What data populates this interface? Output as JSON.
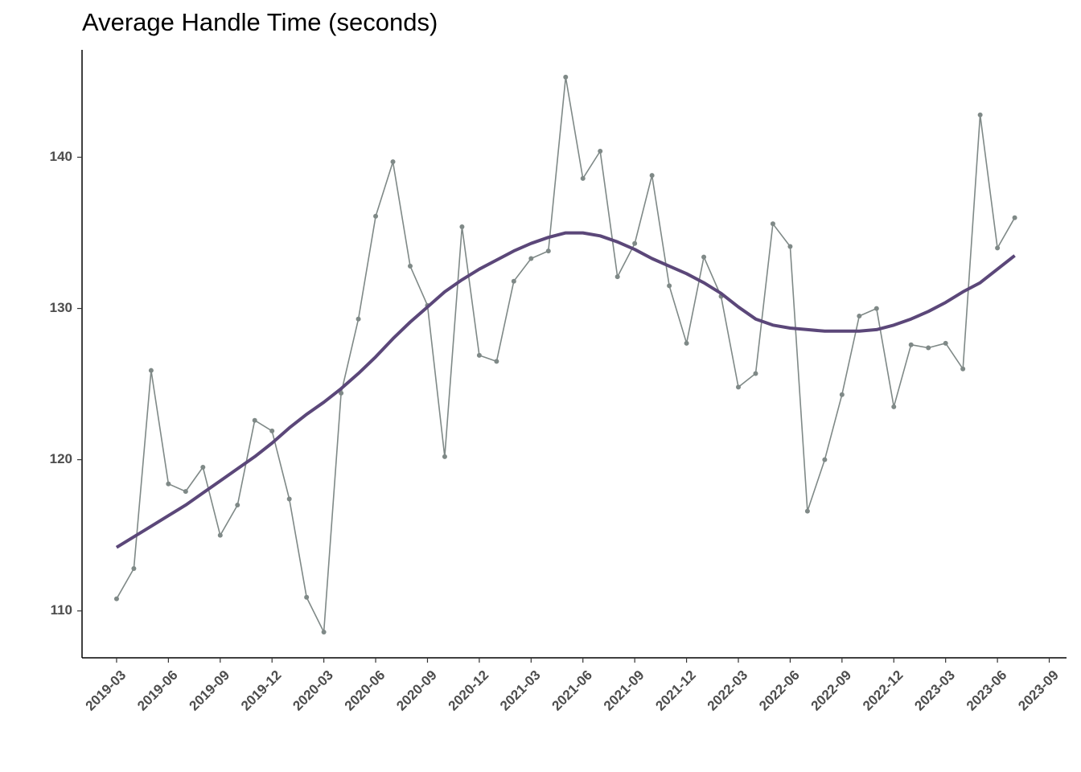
{
  "chart_data": {
    "type": "line",
    "title": "Average Handle Time (seconds)",
    "x": [
      "2019-03",
      "2019-04",
      "2019-05",
      "2019-06",
      "2019-07",
      "2019-08",
      "2019-09",
      "2019-10",
      "2019-11",
      "2019-12",
      "2020-01",
      "2020-02",
      "2020-03",
      "2020-04",
      "2020-05",
      "2020-06",
      "2020-07",
      "2020-08",
      "2020-09",
      "2020-10",
      "2020-11",
      "2020-12",
      "2021-01",
      "2021-02",
      "2021-03",
      "2021-04",
      "2021-05",
      "2021-06",
      "2021-07",
      "2021-08",
      "2021-09",
      "2021-10",
      "2021-11",
      "2021-12",
      "2022-01",
      "2022-02",
      "2022-03",
      "2022-04",
      "2022-05",
      "2022-06",
      "2022-07",
      "2022-08",
      "2022-09",
      "2022-10",
      "2022-11",
      "2022-12",
      "2023-01",
      "2023-02",
      "2023-03",
      "2023-04",
      "2023-05",
      "2023-06",
      "2023-07"
    ],
    "series": [
      {
        "color": "#7f8987",
        "markers": true,
        "values": [
          110.8,
          112.8,
          125.9,
          118.4,
          117.9,
          119.5,
          115.0,
          117.0,
          122.6,
          121.9,
          117.4,
          110.9,
          108.6,
          124.4,
          129.3,
          136.1,
          139.7,
          132.8,
          130.2,
          120.2,
          135.4,
          126.9,
          126.5,
          131.8,
          133.3,
          133.8,
          145.3,
          138.6,
          140.4,
          132.1,
          134.3,
          138.8,
          131.5,
          127.7,
          133.4,
          130.8,
          124.8,
          125.7,
          135.6,
          134.1,
          116.6,
          120.0,
          124.3,
          129.5,
          130.0,
          123.5,
          127.6,
          127.4,
          127.7,
          126.0,
          142.8,
          134.0,
          136.0
        ]
      },
      {
        "color": "#5b4779",
        "markers": false,
        "values": [
          114.2,
          114.9,
          115.6,
          116.3,
          117.0,
          117.8,
          118.6,
          119.4,
          120.2,
          121.1,
          122.1,
          123.0,
          123.8,
          124.7,
          125.7,
          126.8,
          128.0,
          129.1,
          130.1,
          131.1,
          131.9,
          132.6,
          133.2,
          133.8,
          134.3,
          134.7,
          135.0,
          135.0,
          134.8,
          134.4,
          133.9,
          133.3,
          132.8,
          132.3,
          131.7,
          131.0,
          130.1,
          129.3,
          128.9,
          128.7,
          128.6,
          128.5,
          128.5,
          128.5,
          128.6,
          128.9,
          129.3,
          129.8,
          130.4,
          131.1,
          131.7,
          132.6,
          133.5
        ]
      }
    ],
    "xlim": [
      "2019-01",
      "2023-10"
    ],
    "xticks": [
      "2019-03",
      "2019-06",
      "2019-09",
      "2019-12",
      "2020-03",
      "2020-06",
      "2020-09",
      "2020-12",
      "2021-03",
      "2021-06",
      "2021-09",
      "2021-12",
      "2022-03",
      "2022-06",
      "2022-09",
      "2022-12",
      "2023-03",
      "2023-06",
      "2023-09"
    ],
    "ylim": [
      106.9,
      147.1
    ],
    "yticks": [
      110,
      120,
      130,
      140
    ],
    "grid": false
  }
}
